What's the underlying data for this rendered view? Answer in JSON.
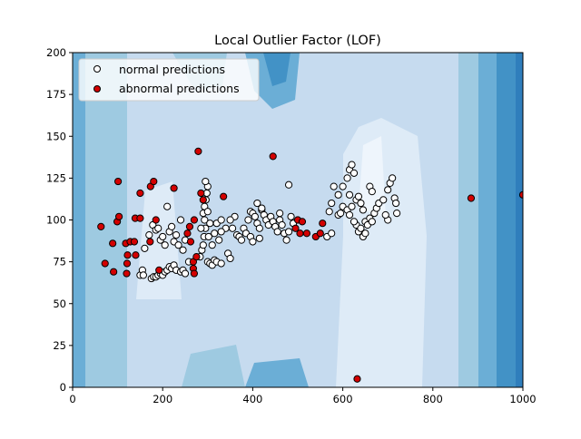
{
  "chart_data": {
    "type": "scatter",
    "title": "Local Outlier Factor (LOF)",
    "xlabel": "",
    "ylabel": "",
    "xlim": [
      0,
      1000
    ],
    "ylim": [
      0,
      200
    ],
    "xticks": [
      0,
      200,
      400,
      600,
      800,
      1000
    ],
    "yticks": [
      0,
      25,
      50,
      75,
      100,
      125,
      150,
      175,
      200
    ],
    "grid": false,
    "legend_position": "top-left",
    "background": "filled contour of LOF decision function (Blues colormap), darker near left/right edges, lightest in center",
    "series": [
      {
        "name": "normal predictions",
        "color": "#ffffff",
        "edgecolor": "#000000",
        "points": [
          [
            175,
            65
          ],
          [
            180,
            66
          ],
          [
            185,
            66
          ],
          [
            190,
            67
          ],
          [
            195,
            68
          ],
          [
            200,
            67
          ],
          [
            205,
            69
          ],
          [
            210,
            70
          ],
          [
            215,
            72
          ],
          [
            220,
            71
          ],
          [
            225,
            73
          ],
          [
            230,
            70
          ],
          [
            240,
            69
          ],
          [
            245,
            70
          ],
          [
            250,
            68
          ],
          [
            150,
            67
          ],
          [
            155,
            70
          ],
          [
            157,
            67
          ],
          [
            160,
            83
          ],
          [
            170,
            91
          ],
          [
            178,
            97
          ],
          [
            185,
            94
          ],
          [
            190,
            95
          ],
          [
            195,
            88
          ],
          [
            200,
            90
          ],
          [
            205,
            85
          ],
          [
            210,
            108
          ],
          [
            215,
            93
          ],
          [
            220,
            96
          ],
          [
            225,
            87
          ],
          [
            230,
            91
          ],
          [
            235,
            85
          ],
          [
            240,
            100
          ],
          [
            245,
            82
          ],
          [
            250,
            88
          ],
          [
            258,
            75
          ],
          [
            283,
            78
          ],
          [
            287,
            82
          ],
          [
            290,
            85
          ],
          [
            292,
            90
          ],
          [
            295,
            95
          ],
          [
            293,
            100
          ],
          [
            290,
            104
          ],
          [
            293,
            108
          ],
          [
            296,
            112
          ],
          [
            298,
            116
          ],
          [
            300,
            120
          ],
          [
            295,
            123
          ],
          [
            300,
            105
          ],
          [
            305,
            98
          ],
          [
            302,
            90
          ],
          [
            300,
            75
          ],
          [
            305,
            74
          ],
          [
            310,
            73
          ],
          [
            315,
            76
          ],
          [
            320,
            75
          ],
          [
            330,
            74
          ],
          [
            285,
            95
          ],
          [
            310,
            85
          ],
          [
            315,
            92
          ],
          [
            320,
            98
          ],
          [
            325,
            88
          ],
          [
            330,
            100
          ],
          [
            345,
            80
          ],
          [
            350,
            77
          ],
          [
            365,
            91
          ],
          [
            370,
            90
          ],
          [
            375,
            88
          ],
          [
            380,
            95
          ],
          [
            385,
            92
          ],
          [
            390,
            100
          ],
          [
            395,
            105
          ],
          [
            400,
            104
          ],
          [
            405,
            102
          ],
          [
            410,
            98
          ],
          [
            415,
            95
          ],
          [
            420,
            106
          ],
          [
            425,
            103
          ],
          [
            430,
            100
          ],
          [
            435,
            97
          ],
          [
            440,
            102
          ],
          [
            445,
            99
          ],
          [
            450,
            96
          ],
          [
            455,
            93
          ],
          [
            460,
            100
          ],
          [
            465,
            97
          ],
          [
            470,
            92
          ],
          [
            475,
            88
          ],
          [
            480,
            93
          ],
          [
            485,
            102
          ],
          [
            490,
            98
          ],
          [
            355,
            95
          ],
          [
            360,
            102
          ],
          [
            340,
            95
          ],
          [
            395,
            90
          ],
          [
            400,
            87
          ],
          [
            415,
            89
          ],
          [
            480,
            121
          ],
          [
            460,
            104
          ],
          [
            410,
            110
          ],
          [
            420,
            107
          ],
          [
            350,
            100
          ],
          [
            330,
            93
          ],
          [
            565,
            90
          ],
          [
            575,
            110
          ],
          [
            580,
            120
          ],
          [
            590,
            103
          ],
          [
            595,
            104
          ],
          [
            600,
            120
          ],
          [
            610,
            125
          ],
          [
            615,
            130
          ],
          [
            620,
            133
          ],
          [
            625,
            128
          ],
          [
            630,
            112
          ],
          [
            635,
            114
          ],
          [
            640,
            110
          ],
          [
            645,
            106
          ],
          [
            650,
            99
          ],
          [
            655,
            97
          ],
          [
            660,
            101
          ],
          [
            665,
            99
          ],
          [
            670,
            104
          ],
          [
            675,
            107
          ],
          [
            680,
            110
          ],
          [
            690,
            112
          ],
          [
            700,
            118
          ],
          [
            705,
            122
          ],
          [
            710,
            125
          ],
          [
            715,
            113
          ],
          [
            718,
            110
          ],
          [
            720,
            104
          ],
          [
            700,
            100
          ],
          [
            695,
            103
          ],
          [
            630,
            97
          ],
          [
            635,
            93
          ],
          [
            640,
            95
          ],
          [
            645,
            90
          ],
          [
            650,
            92
          ],
          [
            600,
            108
          ],
          [
            610,
            106
          ],
          [
            620,
            108
          ],
          [
            625,
            99
          ],
          [
            615,
            115
          ],
          [
            590,
            115
          ],
          [
            575,
            92
          ],
          [
            615,
            103
          ],
          [
            660,
            120
          ],
          [
            665,
            117
          ],
          [
            570,
            105
          ]
        ]
      },
      {
        "name": "abnormal predictions",
        "color": "#d40000",
        "edgecolor": "#000000",
        "points": [
          [
            63,
            96
          ],
          [
            72,
            74
          ],
          [
            91,
            69
          ],
          [
            89,
            86
          ],
          [
            99,
            99
          ],
          [
            103,
            102
          ],
          [
            101,
            123
          ],
          [
            118,
            86
          ],
          [
            120,
            68
          ],
          [
            121,
            74
          ],
          [
            122,
            79
          ],
          [
            128,
            87
          ],
          [
            137,
            87
          ],
          [
            139,
            101
          ],
          [
            140,
            79
          ],
          [
            150,
            116
          ],
          [
            150,
            101
          ],
          [
            173,
            120
          ],
          [
            180,
            123
          ],
          [
            185,
            100
          ],
          [
            172,
            87
          ],
          [
            192,
            70
          ],
          [
            225,
            119
          ],
          [
            255,
            92
          ],
          [
            260,
            96
          ],
          [
            262,
            87
          ],
          [
            268,
            71
          ],
          [
            270,
            68
          ],
          [
            268,
            75
          ],
          [
            270,
            100
          ],
          [
            275,
            78
          ],
          [
            285,
            116
          ],
          [
            290,
            112
          ],
          [
            279,
            141
          ],
          [
            335,
            114
          ],
          [
            445,
            138
          ],
          [
            500,
            100
          ],
          [
            495,
            95
          ],
          [
            505,
            92
          ],
          [
            510,
            99
          ],
          [
            520,
            92
          ],
          [
            540,
            90
          ],
          [
            550,
            92
          ],
          [
            555,
            98
          ],
          [
            632,
            5
          ],
          [
            885,
            113
          ],
          [
            1000,
            115
          ]
        ]
      }
    ]
  }
}
